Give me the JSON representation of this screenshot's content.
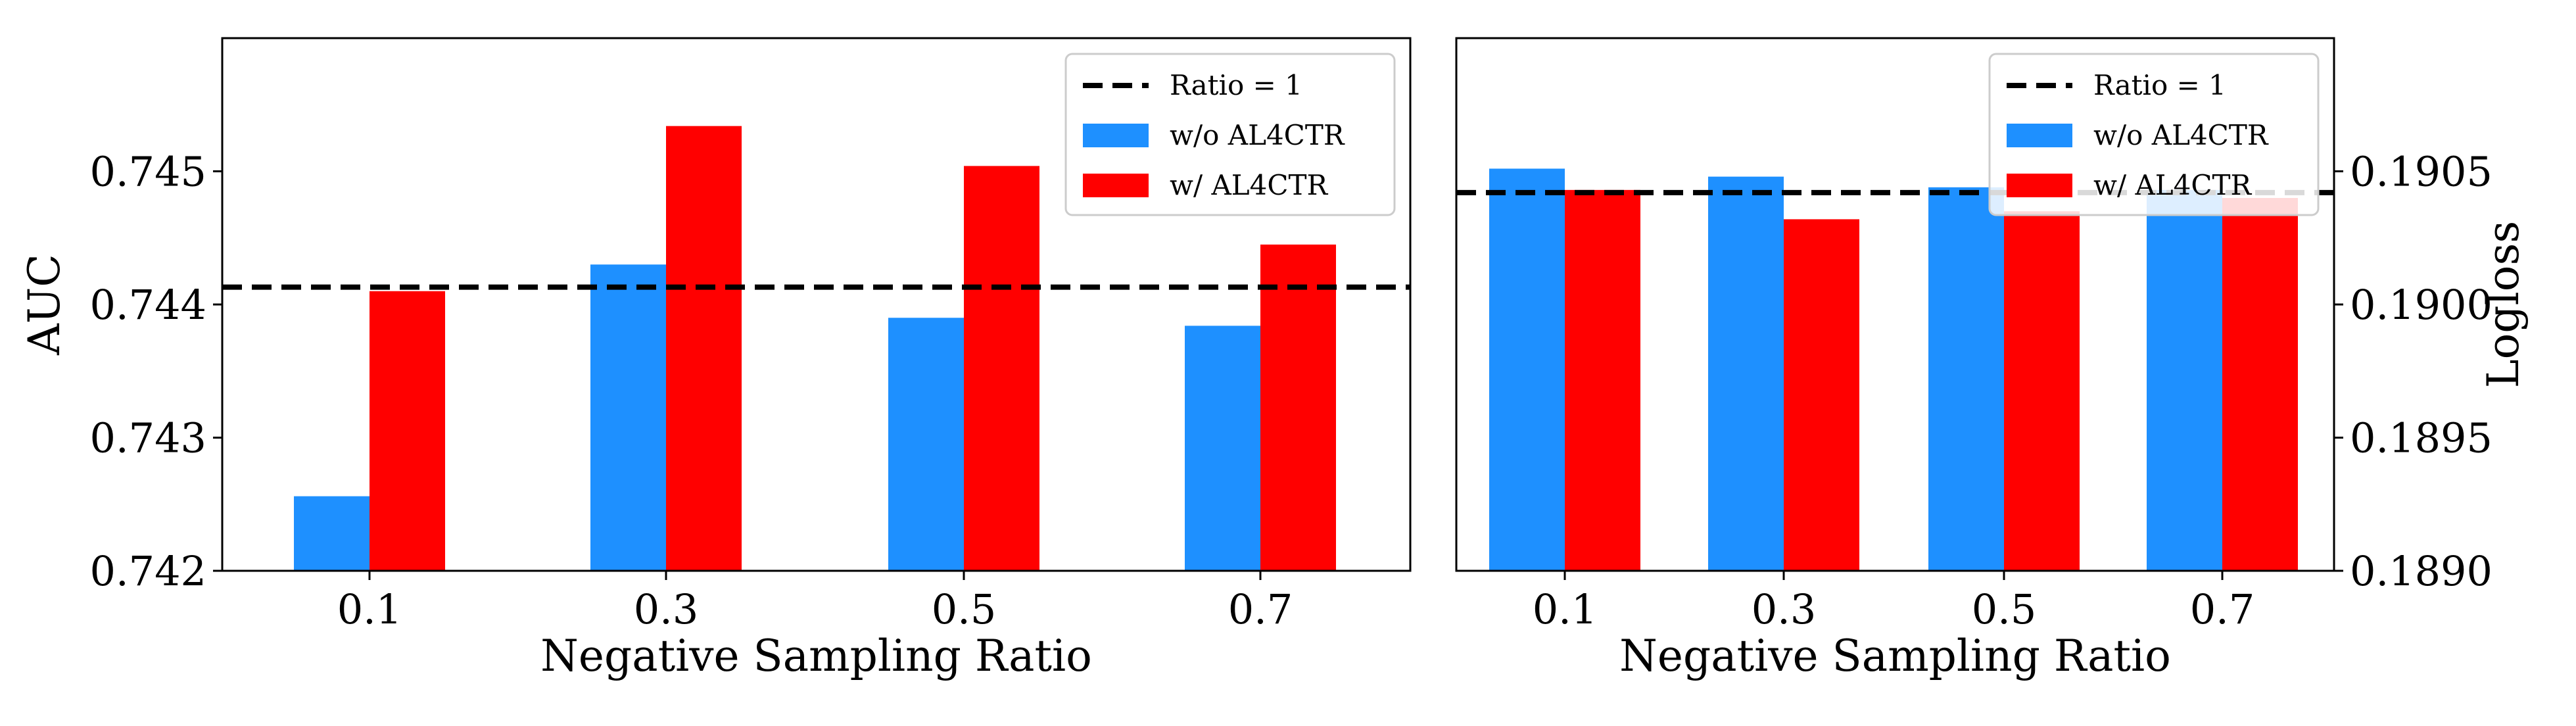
{
  "chart_data": [
    {
      "type": "bar",
      "categories": [
        "0.1",
        "0.3",
        "0.5",
        "0.7"
      ],
      "series": [
        {
          "name": "w/o AL4CTR",
          "color": "#1E90FF",
          "values": [
            0.74256,
            0.7443,
            0.7439,
            0.74384
          ]
        },
        {
          "name": "w/ AL4CTR",
          "color": "#FF0000",
          "values": [
            0.7441,
            0.74534,
            0.74504,
            0.74445
          ]
        }
      ],
      "reference_line": {
        "name": "Ratio = 1",
        "value": 0.74413,
        "color": "#000000"
      },
      "xlabel": "Negative Sampling Ratio",
      "ylabel": "AUC",
      "ylim": [
        0.742,
        0.746
      ],
      "yticks": [
        "0.742",
        "0.743",
        "0.744",
        "0.745"
      ],
      "ytick_values": [
        0.742,
        0.743,
        0.744,
        0.745
      ],
      "y_axis_side": "left",
      "legend_position": "top-right",
      "legend_entries": [
        "Ratio = 1",
        "w/o AL4CTR",
        "w/ AL4CTR"
      ],
      "grid": false
    },
    {
      "type": "bar",
      "categories": [
        "0.1",
        "0.3",
        "0.5",
        "0.7"
      ],
      "series": [
        {
          "name": "w/o AL4CTR",
          "color": "#1E90FF",
          "values": [
            0.19051,
            0.19048,
            0.19044,
            0.19043
          ]
        },
        {
          "name": "w/ AL4CTR",
          "color": "#FF0000",
          "values": [
            0.19043,
            0.19032,
            0.19035,
            0.1904
          ]
        }
      ],
      "reference_line": {
        "name": "Ratio = 1",
        "value": 0.19042,
        "color": "#000000"
      },
      "xlabel": "Negative Sampling Ratio",
      "ylabel": "Logloss",
      "ylim": [
        0.189,
        0.191
      ],
      "yticks": [
        "0.1890",
        "0.1895",
        "0.1900",
        "0.1905"
      ],
      "ytick_values": [
        0.189,
        0.1895,
        0.19,
        0.1905
      ],
      "y_axis_side": "right",
      "legend_position": "top-right",
      "legend_entries": [
        "Ratio = 1",
        "w/o AL4CTR",
        "w/ AL4CTR"
      ],
      "grid": false
    }
  ]
}
